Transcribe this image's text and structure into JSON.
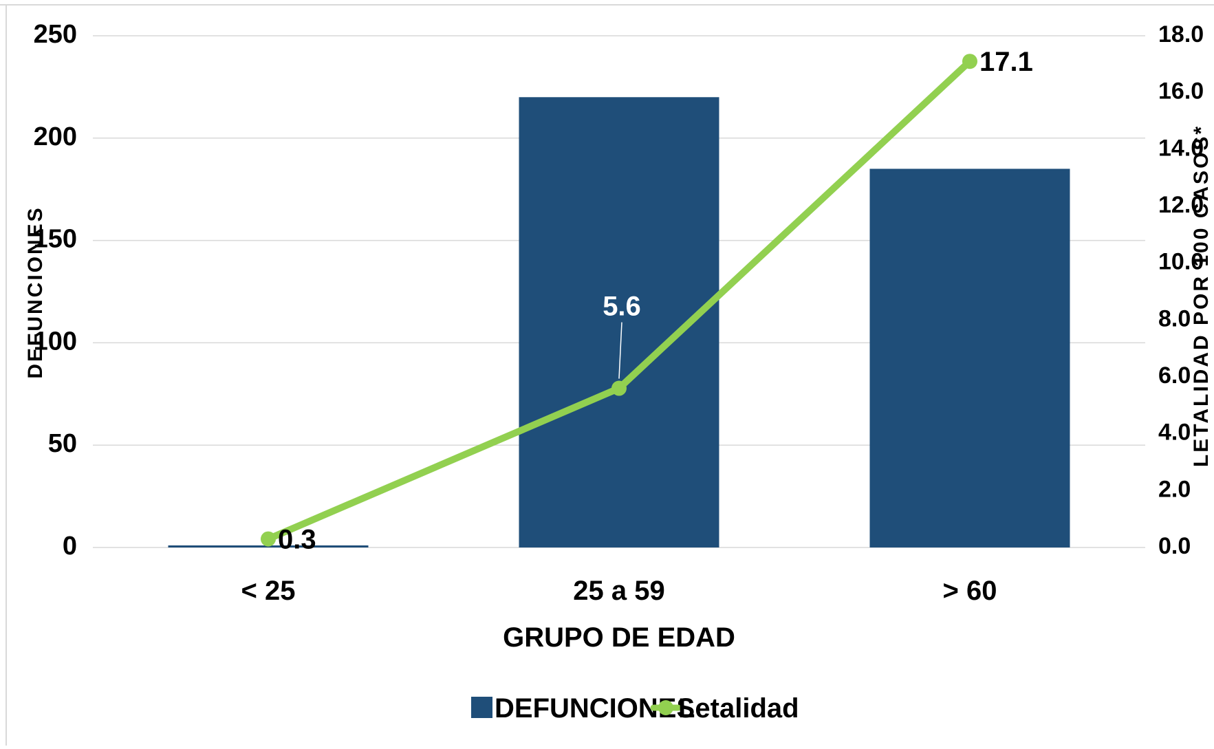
{
  "chart_data": {
    "type": "bar",
    "categories": [
      "< 25",
      "25 a 59",
      "> 60"
    ],
    "series": [
      {
        "name": "DEFUNCIONES",
        "type": "bar",
        "axis": "left",
        "values": [
          1,
          220,
          185
        ]
      },
      {
        "name": "Letalidad",
        "type": "line",
        "axis": "right",
        "values": [
          0.3,
          5.6,
          17.1
        ],
        "labels": [
          "0.3",
          "5.6",
          "17.1"
        ]
      }
    ],
    "xlabel": "GRUPO DE EDAD",
    "ylabel": "DEFUNCIONES",
    "y2label": "LETALIDAD POR 100 CASOS*",
    "ylim": [
      0,
      250
    ],
    "y2lim": [
      0,
      18
    ],
    "yticks": [
      "0",
      "50",
      "100",
      "150",
      "200",
      "250"
    ],
    "y2ticks": [
      "0.0",
      "2.0",
      "4.0",
      "6.0",
      "8.0",
      "10.0",
      "12.0",
      "14.0",
      "16.0",
      "18.0"
    ],
    "grid": true,
    "legend_position": "bottom",
    "colors": {
      "bar": "#1f4e79",
      "line": "#92d050",
      "grid": "#d9d9d9",
      "text": "#000000"
    }
  }
}
